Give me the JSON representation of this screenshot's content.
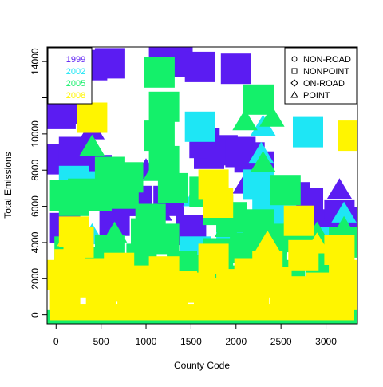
{
  "chart_data": {
    "type": "scatter",
    "title": "",
    "xlabel": "County Code",
    "ylabel": "Total Emissions",
    "xlim": [
      -100,
      3350
    ],
    "ylim": [
      -500,
      14800
    ],
    "xticks": [
      0,
      500,
      1000,
      1500,
      2000,
      2500,
      3000
    ],
    "yticks": [
      0,
      2000,
      4000,
      6000,
      8000,
      10000,
      12000,
      14000
    ],
    "ytick_labels_shown": [
      "0",
      "2000",
      "4000",
      "6000",
      "8000",
      "10000",
      "",
      "14000"
    ],
    "grid": false,
    "year_legend": {
      "placement": "top-left",
      "entries": [
        {
          "label": "1999",
          "color": "#5B1CF2"
        },
        {
          "label": "2002",
          "color": "#1EE6F5"
        },
        {
          "label": "2005",
          "color": "#14F06A"
        },
        {
          "label": "2008",
          "color": "#FFF500"
        }
      ]
    },
    "shape_legend": {
      "placement": "top-right",
      "entries": [
        {
          "label": "NON-ROAD",
          "shape": "circle"
        },
        {
          "label": "NONPOINT",
          "shape": "square"
        },
        {
          "label": "ON-ROAD",
          "shape": "diamond"
        },
        {
          "label": "POINT",
          "shape": "triangle"
        }
      ]
    },
    "series": [
      {
        "name": "1999",
        "color": "#5B1CF2",
        "squares": [
          [
            50,
            11100
          ],
          [
            150,
            11400
          ],
          [
            400,
            13800
          ],
          [
            600,
            13900
          ],
          [
            1200,
            14100
          ],
          [
            1350,
            14000
          ],
          [
            1600,
            13700
          ],
          [
            2000,
            13600
          ],
          [
            2150,
            8700
          ],
          [
            50,
            8600
          ],
          [
            200,
            9000
          ],
          [
            300,
            8400
          ],
          [
            450,
            8000
          ],
          [
            550,
            7000
          ],
          [
            800,
            6300
          ],
          [
            900,
            6300
          ],
          [
            1250,
            6300
          ],
          [
            1700,
            8900
          ],
          [
            1650,
            9500
          ],
          [
            1850,
            9100
          ],
          [
            2050,
            9000
          ],
          [
            2250,
            8200
          ],
          [
            2450,
            5700
          ],
          [
            2650,
            6500
          ],
          [
            2800,
            6200
          ],
          [
            3000,
            5000
          ],
          [
            3150,
            5500
          ],
          [
            3250,
            5100
          ],
          [
            100,
            4800
          ],
          [
            650,
            5200
          ],
          [
            1500,
            4700
          ],
          [
            2500,
            5000
          ],
          [
            3000,
            4500
          ]
        ],
        "triangles": [
          [
            400,
            10200
          ],
          [
            700,
            7800
          ],
          [
            1000,
            8000
          ],
          [
            1150,
            5700
          ],
          [
            1950,
            5500
          ],
          [
            2100,
            7200
          ],
          [
            3150,
            6900
          ]
        ]
      },
      {
        "name": "2002",
        "color": "#1EE6F5",
        "squares": [
          [
            1600,
            10400
          ],
          [
            2800,
            10100
          ],
          [
            200,
            7400
          ],
          [
            350,
            7100
          ],
          [
            1550,
            3500
          ],
          [
            2250,
            7200
          ],
          [
            2350,
            6400
          ],
          [
            2500,
            5500
          ],
          [
            2900,
            4000
          ],
          [
            3050,
            3500
          ],
          [
            1950,
            4500
          ]
        ],
        "triangles": [
          [
            2300,
            10400
          ],
          [
            2280,
            8900
          ],
          [
            2300,
            7900
          ],
          [
            1550,
            6500
          ],
          [
            3200,
            5600
          ],
          [
            2100,
            4900
          ],
          [
            400,
            4400
          ]
        ]
      },
      {
        "name": "2005",
        "color": "#14F06A",
        "squares": [
          [
            1150,
            13400
          ],
          [
            1200,
            11500
          ],
          [
            1150,
            9900
          ],
          [
            1200,
            8500
          ],
          [
            1300,
            7000
          ],
          [
            600,
            7900
          ],
          [
            800,
            7600
          ],
          [
            100,
            6600
          ],
          [
            200,
            6300
          ],
          [
            300,
            6700
          ],
          [
            450,
            6600
          ],
          [
            750,
            6700
          ],
          [
            1050,
            5300
          ],
          [
            1000,
            4500
          ],
          [
            1200,
            4200
          ],
          [
            1650,
            6800
          ],
          [
            1800,
            5800
          ],
          [
            1950,
            5400
          ],
          [
            2250,
            11900
          ],
          [
            2250,
            5000
          ],
          [
            2400,
            4200
          ],
          [
            2550,
            6900
          ],
          [
            2700,
            4300
          ],
          [
            2850,
            3500
          ],
          [
            3050,
            2900
          ],
          [
            3200,
            4000
          ],
          [
            600,
            3600
          ],
          [
            250,
            2500
          ],
          [
            1400,
            2700
          ],
          [
            1800,
            3400
          ],
          [
            2100,
            3700
          ],
          [
            2400,
            2800
          ],
          [
            2600,
            2200
          ],
          [
            2950,
            1700
          ],
          [
            3150,
            1500
          ],
          [
            700,
            2400
          ],
          [
            1100,
            2200
          ],
          [
            1600,
            2500
          ],
          [
            1900,
            1900
          ],
          [
            150,
            3500
          ],
          [
            450,
            2900
          ],
          [
            950,
            3100
          ]
        ],
        "triangles": [
          [
            400,
            9300
          ],
          [
            1100,
            7900
          ],
          [
            2100,
            10700
          ],
          [
            2400,
            10900
          ],
          [
            2300,
            8400
          ],
          [
            3200,
            4800
          ],
          [
            2900,
            4500
          ],
          [
            1900,
            4800
          ],
          [
            650,
            4500
          ]
        ]
      },
      {
        "name": "2008",
        "color": "#FFF500",
        "squares": [
          [
            400,
            10900
          ],
          [
            3300,
            9900
          ],
          [
            1750,
            7200
          ],
          [
            1800,
            6200
          ],
          [
            200,
            4600
          ],
          [
            250,
            4000
          ],
          [
            700,
            2600
          ],
          [
            1200,
            2400
          ],
          [
            1750,
            3100
          ],
          [
            2150,
            2300
          ],
          [
            2700,
            5200
          ],
          [
            2750,
            3300
          ],
          [
            3150,
            3600
          ],
          [
            3200,
            2200
          ],
          [
            50,
            2200
          ],
          [
            300,
            1800
          ],
          [
            550,
            1600
          ],
          [
            850,
            1200
          ],
          [
            1000,
            1900
          ],
          [
            1400,
            1600
          ],
          [
            1600,
            1500
          ],
          [
            1950,
            1700
          ],
          [
            2200,
            1200
          ],
          [
            2450,
            1800
          ],
          [
            2650,
            1300
          ],
          [
            2950,
            1500
          ],
          [
            3100,
            1000
          ],
          [
            150,
            2800
          ],
          [
            450,
            2300
          ],
          [
            1100,
            1300
          ],
          [
            1850,
            1200
          ],
          [
            2350,
            2700
          ],
          [
            2550,
            800
          ],
          [
            3250,
            600
          ],
          [
            100,
            800
          ],
          [
            500,
            900
          ],
          [
            1300,
            1000
          ],
          [
            1700,
            900
          ],
          [
            2000,
            700
          ],
          [
            2900,
            900
          ]
        ],
        "triangles": [
          [
            150,
            4300
          ],
          [
            2350,
            4000
          ],
          [
            2900,
            3900
          ]
        ]
      }
    ]
  }
}
